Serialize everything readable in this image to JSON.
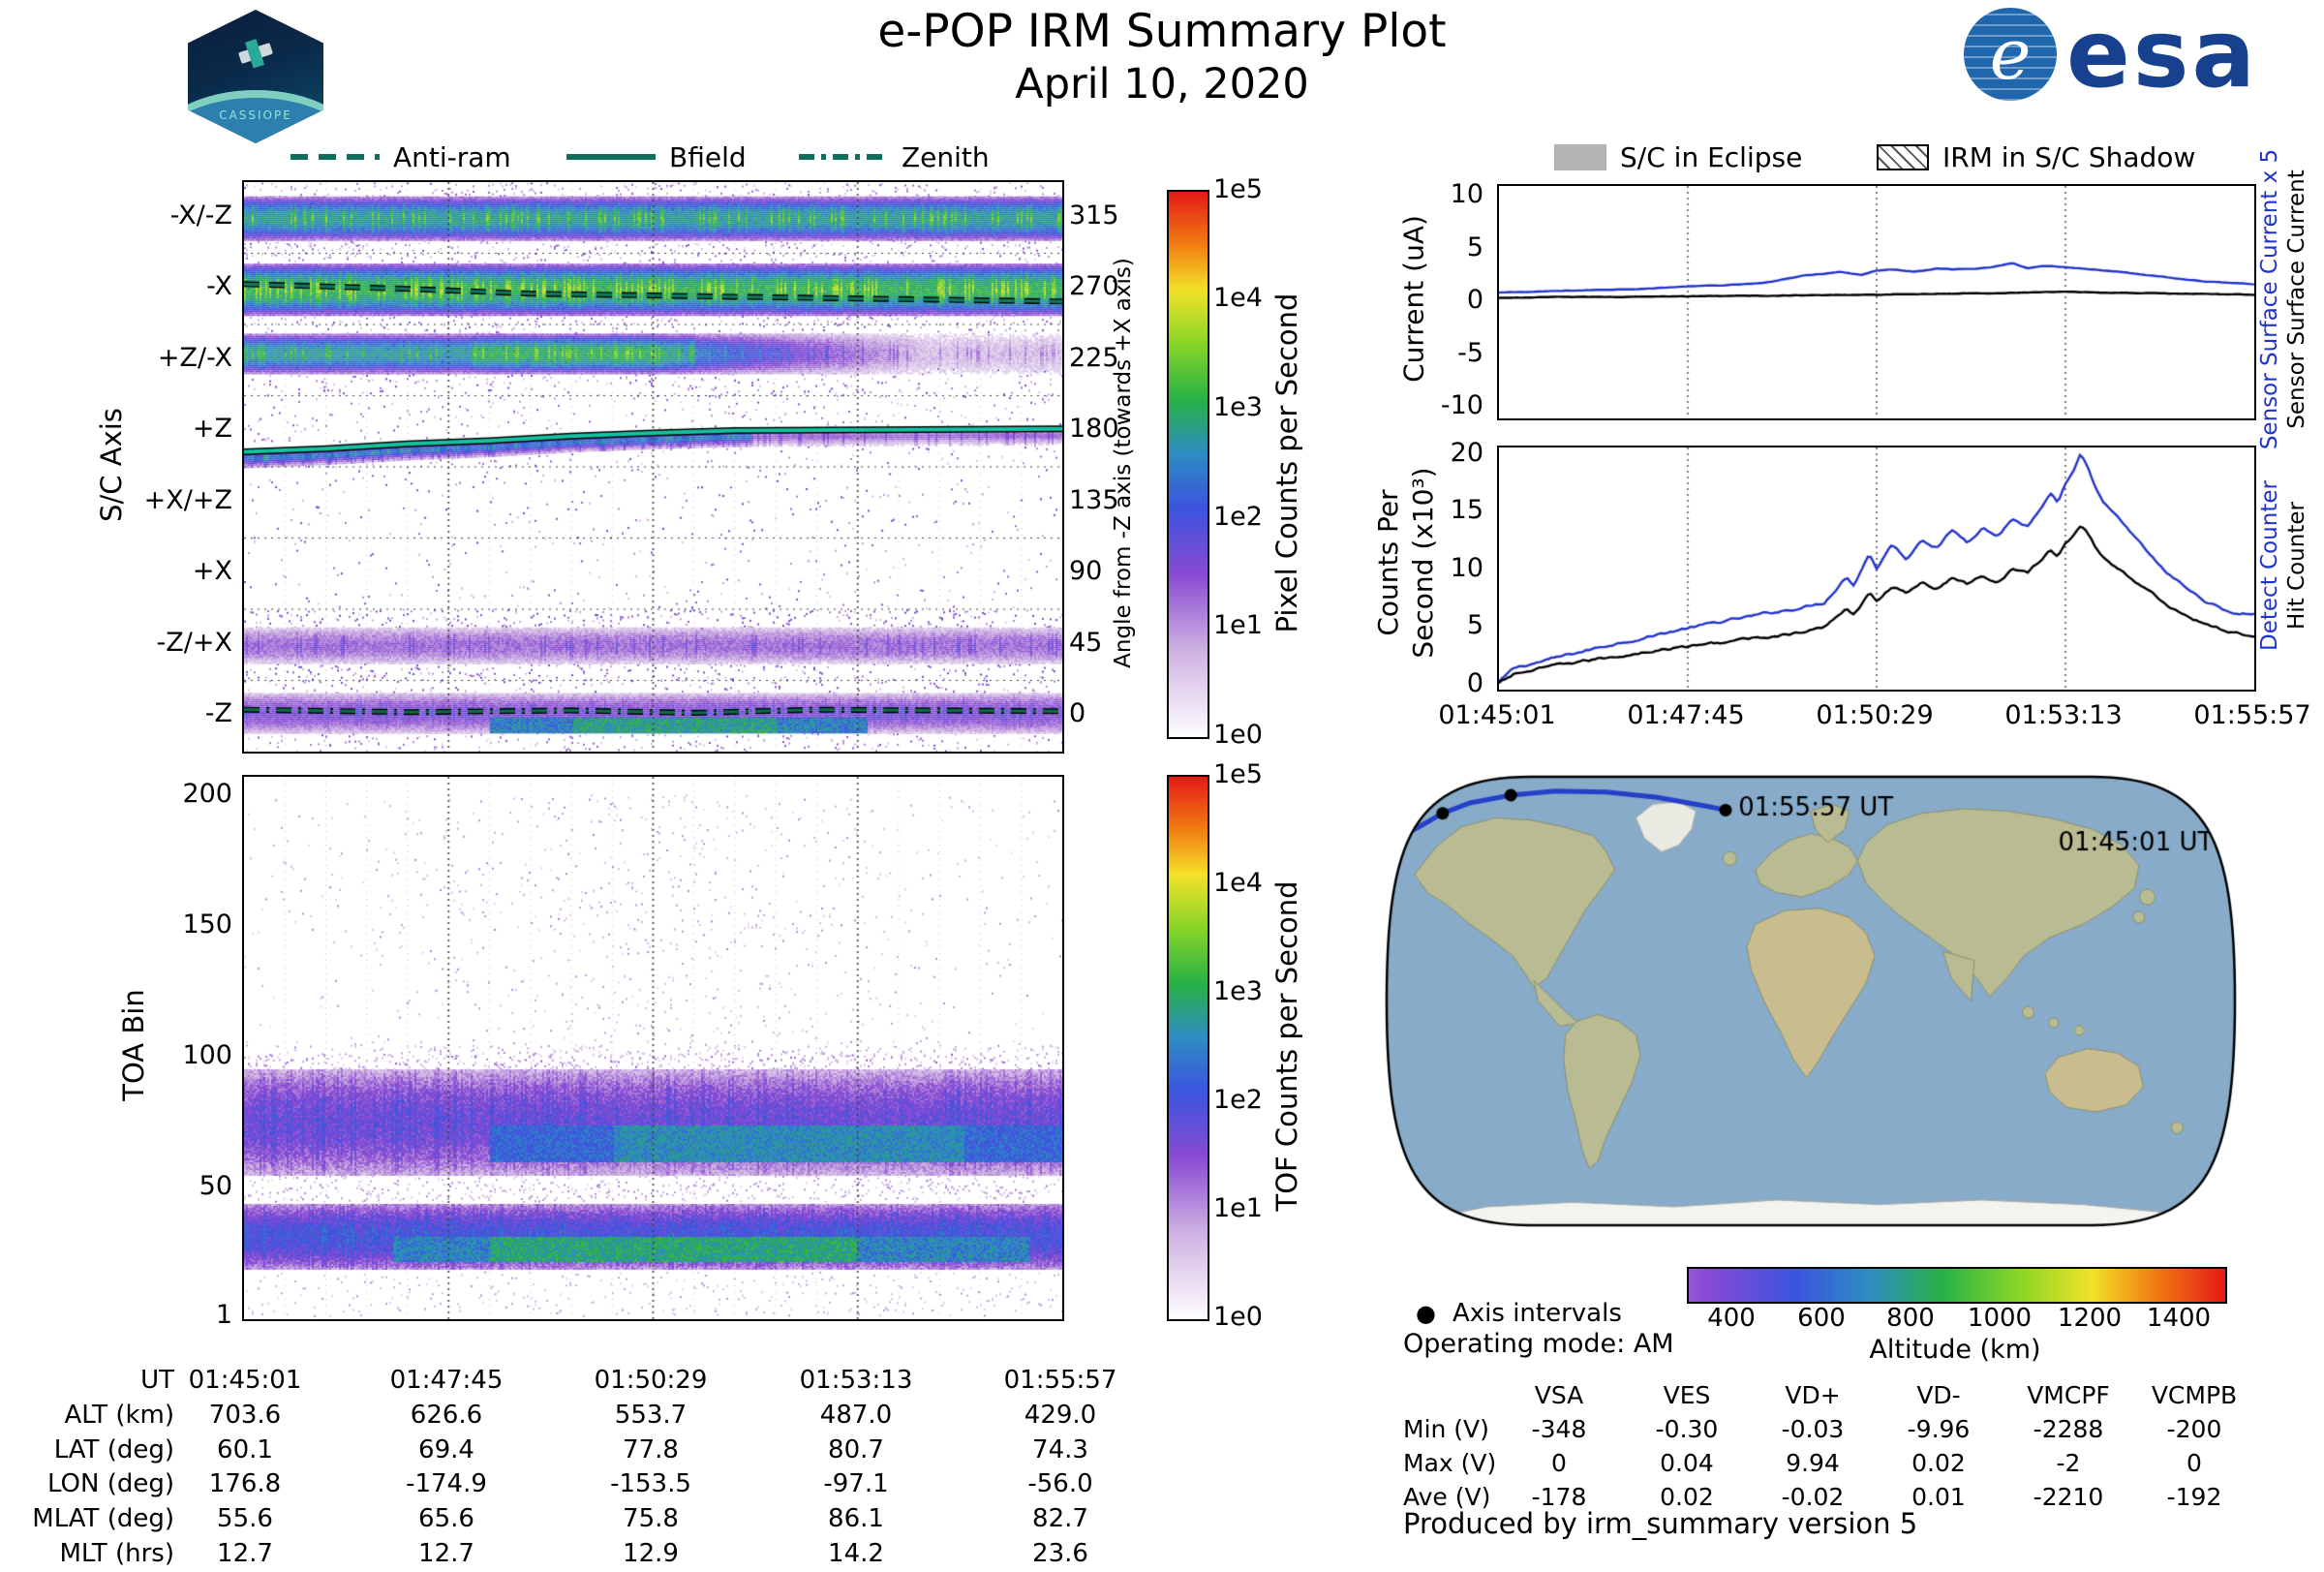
{
  "header": {
    "title": "e-POP IRM Summary Plot",
    "date": "April 10, 2020",
    "patch_text": "CASSIOPE",
    "esa_wordmark": "esa",
    "esa_e": "e"
  },
  "left_legend": {
    "items": [
      {
        "label": "Anti-ram",
        "style": "dashed"
      },
      {
        "label": "Bfield",
        "style": "solid"
      },
      {
        "label": "Zenith",
        "style": "dashdot"
      }
    ]
  },
  "right_legend": {
    "items": [
      {
        "label": "S/C in Eclipse",
        "swatch": "gray-fill"
      },
      {
        "label": "IRM in S/C Shadow",
        "swatch": "hatched"
      }
    ]
  },
  "ephemeris_table": {
    "rows": [
      {
        "label": "UT",
        "values": [
          "01:45:01",
          "01:47:45",
          "01:50:29",
          "01:53:13",
          "01:55:57"
        ]
      },
      {
        "label": "ALT (km)",
        "values": [
          "703.6",
          "626.6",
          "553.7",
          "487.0",
          "429.0"
        ]
      },
      {
        "label": "LAT (deg)",
        "values": [
          "60.1",
          "69.4",
          "77.8",
          "80.7",
          "74.3"
        ]
      },
      {
        "label": "LON (deg)",
        "values": [
          "176.8",
          "-174.9",
          "-153.5",
          "-97.1",
          "-56.0"
        ]
      },
      {
        "label": "MLAT (deg)",
        "values": [
          "55.6",
          "65.6",
          "75.8",
          "86.1",
          "82.7"
        ]
      },
      {
        "label": "MLT (hrs)",
        "values": [
          "12.7",
          "12.7",
          "12.9",
          "14.2",
          "23.6"
        ]
      }
    ]
  },
  "voltage_table": {
    "columns": [
      "VSA",
      "VES",
      "VD+",
      "VD-",
      "VMCPF",
      "VCMPB"
    ],
    "rows": [
      {
        "label": "Min (V)",
        "values": [
          "-348",
          "-0.30",
          "-0.03",
          "-9.96",
          "-2288",
          "-200"
        ]
      },
      {
        "label": "Max (V)",
        "values": [
          "0",
          "0.04",
          "9.94",
          "0.02",
          "-2",
          "0"
        ]
      },
      {
        "label": "Ave (V)",
        "values": [
          "-178",
          "0.02",
          "-0.02",
          "0.01",
          "-2210",
          "-192"
        ]
      }
    ]
  },
  "footer": {
    "axis_intervals_dot": "●",
    "axis_intervals_label": "Axis intervals",
    "operating_mode": "Operating mode: AM",
    "produced_by": "Produced by irm_summary version 5"
  },
  "chart_data": [
    {
      "id": "sc_axis",
      "type": "heatmap",
      "ylabel": "S/C Axis",
      "y_categories": [
        "-X/-Z",
        "-X",
        "+Z/-X",
        "+Z",
        "+X/+Z",
        "+X",
        "-Z/+X",
        "-Z"
      ],
      "right_axis_label": "Angle from -Z axis (towards +X axis)",
      "right_ticks": [
        "315",
        "270",
        "225",
        "180",
        "135",
        "90",
        "45",
        "0"
      ],
      "x_start": "01:45:01",
      "x_end": "01:55:57",
      "colorbar": {
        "label": "Pixel Counts per Second",
        "ticks": [
          "1e5",
          "1e4",
          "1e3",
          "1e2",
          "1e1",
          "1e0"
        ]
      },
      "overlays": [
        {
          "name": "Anti-ram",
          "style": "dashed",
          "angles": [
            [
              0,
              273
            ],
            [
              0.2,
              270
            ],
            [
              0.35,
              267
            ],
            [
              0.6,
              265
            ],
            [
              1,
              262
            ]
          ]
        },
        {
          "name": "Bfield",
          "style": "solid",
          "angles": [
            [
              0,
              167
            ],
            [
              0.1,
              169
            ],
            [
              0.2,
              172
            ],
            [
              0.3,
              174
            ],
            [
              0.4,
              177
            ],
            [
              0.5,
              179
            ],
            [
              0.6,
              180.5
            ],
            [
              1,
              181.5
            ]
          ]
        },
        {
          "name": "Zenith",
          "style": "dashdot",
          "angles": [
            [
              0,
              4
            ],
            [
              0.2,
              2.5
            ],
            [
              0.4,
              3.5
            ],
            [
              0.55,
              2
            ],
            [
              0.7,
              4
            ],
            [
              1,
              3
            ]
          ]
        }
      ],
      "bands": [
        {
          "row": "-X/-Z",
          "desc": "bright green band with yellow streaks, counts ~1e3-1e4",
          "level": 0.56
        },
        {
          "row": "-X",
          "desc": "brightest yellow-green band, counts ~1e3-1e4",
          "level": 0.62
        },
        {
          "row": "+Z/-X",
          "desc": "green band fading after mid-pass",
          "level": 0.55
        },
        {
          "row": "+Z",
          "desc": "narrow green band along Bfield line",
          "level": 0.5
        },
        {
          "row": "+X/+Z",
          "desc": "sparse purple speckle ~1e1",
          "level": 0.15
        },
        {
          "row": "+X",
          "desc": "sparse purple speckle ~1e1",
          "level": 0.12
        },
        {
          "row": "-Z/+X",
          "desc": "purple speckled band ~1e1-1e2",
          "level": 0.26
        },
        {
          "row": "-Z",
          "desc": "purple-blue band with green mid-pass segments",
          "level": 0.32
        }
      ]
    },
    {
      "id": "toa",
      "type": "heatmap",
      "ylabel": "TOA Bin",
      "ylim": [
        1,
        200
      ],
      "yticks": [
        "1",
        "50",
        "100",
        "150",
        "200"
      ],
      "colorbar": {
        "label": "TOF Counts per Second",
        "ticks": [
          "1e5",
          "1e4",
          "1e3",
          "1e2",
          "1e1",
          "1e0"
        ]
      },
      "bands": [
        {
          "bins": [
            55,
            95
          ],
          "desc": "broad blue band, green core in right half",
          "level": 0.4
        },
        {
          "bins": [
            20,
            45
          ],
          "desc": "dense band with bright green core",
          "level": 0.5
        },
        {
          "bins": [
            100,
            200
          ],
          "desc": "sparse purple speckle, denser mid-pass",
          "level": 0.15
        }
      ]
    },
    {
      "id": "current",
      "type": "line",
      "ylabel": "Current (uA)",
      "ylim": [
        -11,
        11
      ],
      "ytick_labels": [
        "10",
        "5",
        "0",
        "-5",
        "-10"
      ],
      "right_labels": [
        {
          "text": "Sensor Surface Current x 5",
          "color": "#2233cc"
        },
        {
          "text": "Sensor Surface Current",
          "color": "#000000"
        }
      ],
      "x": [
        0,
        0.05,
        0.1,
        0.15,
        0.2,
        0.25,
        0.3,
        0.35,
        0.4,
        0.43,
        0.45,
        0.48,
        0.5,
        0.52,
        0.55,
        0.58,
        0.6,
        0.63,
        0.65,
        0.68,
        0.7,
        0.72,
        0.75,
        0.78,
        0.8,
        0.83,
        0.85,
        0.88,
        0.9,
        0.93,
        0.95,
        0.98,
        1
      ],
      "series": [
        {
          "name": "Sensor Surface Current x 5",
          "color": "#2233cc",
          "y": [
            0.9,
            1.0,
            1.1,
            1.2,
            1.3,
            1.5,
            1.6,
            1.8,
            2.5,
            2.7,
            2.9,
            2.6,
            3.0,
            3.1,
            2.9,
            3.2,
            3.1,
            3.2,
            3.3,
            3.7,
            3.2,
            3.4,
            3.3,
            3.1,
            3.0,
            2.8,
            2.6,
            2.4,
            2.2,
            2.0,
            1.9,
            1.8,
            1.7
          ]
        },
        {
          "name": "Sensor Surface Current",
          "color": "#000000",
          "y": [
            0.4,
            0.45,
            0.5,
            0.5,
            0.55,
            0.55,
            0.6,
            0.6,
            0.65,
            0.65,
            0.7,
            0.7,
            0.7,
            0.75,
            0.75,
            0.8,
            0.8,
            0.85,
            0.85,
            0.9,
            0.9,
            0.95,
            1.0,
            0.95,
            0.9,
            0.9,
            0.85,
            0.85,
            0.8,
            0.8,
            0.75,
            0.75,
            0.7
          ]
        }
      ]
    },
    {
      "id": "counts",
      "type": "line",
      "ylabel_line1": "Counts Per",
      "ylabel_line2": "Second (x10³)",
      "ylim": [
        -0.35,
        20.7
      ],
      "ytick_labels": [
        "20",
        "15",
        "10",
        "5",
        "0"
      ],
      "x_tick_labels": [
        "01:45:01",
        "01:47:45",
        "01:50:29",
        "01:53:13",
        "01:55:57"
      ],
      "right_labels": [
        {
          "text": "Detect Counter",
          "color": "#2233cc"
        },
        {
          "text": "Hit Counter",
          "color": "#000000"
        }
      ],
      "x": [
        0,
        0.02,
        0.05,
        0.1,
        0.15,
        0.2,
        0.25,
        0.3,
        0.35,
        0.4,
        0.43,
        0.46,
        0.47,
        0.49,
        0.5,
        0.52,
        0.54,
        0.56,
        0.58,
        0.6,
        0.62,
        0.64,
        0.66,
        0.68,
        0.7,
        0.72,
        0.73,
        0.74,
        0.75,
        0.76,
        0.77,
        0.78,
        0.79,
        0.8,
        0.82,
        0.84,
        0.86,
        0.88,
        0.9,
        0.92,
        0.94,
        0.96,
        0.98,
        1
      ],
      "series": [
        {
          "name": "Detect Counter",
          "color": "#2233cc",
          "y": [
            0.3,
            1.5,
            2.0,
            2.8,
            3.6,
            4.3,
            5.0,
            5.6,
            6.2,
            6.8,
            7.2,
            9.5,
            8.8,
            11.5,
            10.2,
            12.3,
            11.0,
            12.8,
            12.0,
            13.5,
            12.5,
            13.8,
            13.0,
            14.5,
            13.8,
            15.5,
            16.5,
            15.8,
            17.5,
            18.5,
            20.0,
            18.8,
            17.0,
            16.0,
            14.5,
            13.0,
            11.5,
            10.0,
            9.0,
            8.0,
            7.2,
            6.6,
            6.2,
            6.3
          ]
        },
        {
          "name": "Hit Counter",
          "color": "#000000",
          "y": [
            0.2,
            1.0,
            1.4,
            2.0,
            2.5,
            3.0,
            3.4,
            3.8,
            4.2,
            4.6,
            5.0,
            6.8,
            6.2,
            8.0,
            7.4,
            8.6,
            8.0,
            9.0,
            8.4,
            9.4,
            8.8,
            9.6,
            9.0,
            10.2,
            9.8,
            11.0,
            11.8,
            11.2,
            12.4,
            13.0,
            14.0,
            13.2,
            12.0,
            11.2,
            10.2,
            9.2,
            8.2,
            7.2,
            6.4,
            5.8,
            5.2,
            4.8,
            4.5,
            4.3
          ]
        }
      ]
    },
    {
      "id": "ground_track",
      "type": "map",
      "track_color": "#2540c8",
      "track": [
        [
          -0.01,
          0.165
        ],
        [
          0.04,
          0.115
        ],
        [
          0.068,
          0.085
        ],
        [
          0.1,
          0.062
        ],
        [
          0.148,
          0.045
        ],
        [
          0.2,
          0.036
        ],
        [
          0.26,
          0.038
        ],
        [
          0.32,
          0.05
        ],
        [
          0.38,
          0.07
        ],
        [
          0.4,
          0.078
        ]
      ],
      "track_right": [
        [
          0.999,
          0.145
        ],
        [
          0.988,
          0.158
        ]
      ],
      "interval_dots": [
        [
          0.068,
          0.085
        ],
        [
          0.148,
          0.045
        ],
        [
          0.4,
          0.078
        ],
        [
          0.988,
          0.158
        ]
      ],
      "labels": [
        {
          "text": "01:55:57 UT",
          "x": 0.415,
          "y": 0.075,
          "anchor": "left"
        },
        {
          "text": "01:45:01 UT",
          "x": 0.972,
          "y": 0.152,
          "anchor": "right"
        }
      ]
    },
    {
      "id": "altitude",
      "type": "colorbar",
      "label": "Altitude (km)",
      "ticks": [
        "400",
        "600",
        "800",
        "1000",
        "1200",
        "1400"
      ],
      "range": [
        300,
        1500
      ]
    }
  ]
}
